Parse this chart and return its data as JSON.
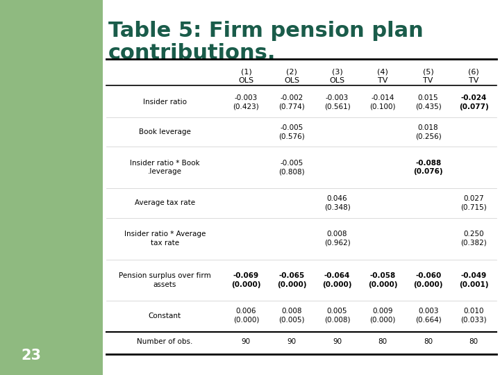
{
  "title_line1": "Table 5: Firm pension plan",
  "title_line2": "contributions.",
  "page_number": "23",
  "col_headers_row1": [
    "(1)",
    "(2)",
    "(3)",
    "(4)",
    "(5)",
    "(6)"
  ],
  "col_headers_row2": [
    "OLS",
    "OLS",
    "OLS",
    "TV",
    "TV",
    "TV"
  ],
  "rows": [
    {
      "label": "Insider ratio",
      "values": [
        "-0.003\n(0.423)",
        "-0.002\n(0.774)",
        "-0.003\n(0.561)",
        "-0.014\n(0.100)",
        "0.015\n(0.435)",
        "-0.024\n(0.077)"
      ],
      "bold": [
        false,
        false,
        false,
        false,
        false,
        true
      ]
    },
    {
      "label": "Book leverage",
      "values": [
        "",
        "-0.005\n(0.576)",
        "",
        "",
        "0.018\n(0.256)",
        ""
      ],
      "bold": [
        false,
        false,
        false,
        false,
        false,
        false
      ]
    },
    {
      "label": "Insider ratio * Book\n.leverage",
      "values": [
        "",
        "-0.005\n(0.808)",
        "",
        "",
        "-0.088\n(0.076)",
        ""
      ],
      "bold": [
        false,
        false,
        false,
        false,
        true,
        false
      ]
    },
    {
      "label": "Average tax rate",
      "values": [
        "",
        "",
        "0.046\n(0.348)",
        "",
        "",
        "0.027\n(0.715)"
      ],
      "bold": [
        false,
        false,
        false,
        false,
        false,
        false
      ]
    },
    {
      "label": "Insider ratio * Average\ntax rate",
      "values": [
        "",
        "",
        "0.008\n(0.962)",
        "",
        "",
        "0.250\n(0.382)"
      ],
      "bold": [
        false,
        false,
        false,
        false,
        false,
        false
      ]
    },
    {
      "label": "Pension surplus over firm\nassets",
      "values": [
        "-0.069\n(0.000)",
        "-0.065\n(0.000)",
        "-0.064\n(0.000)",
        "-0.058\n(0.000)",
        "-0.060\n(0.000)",
        "-0.049\n(0.001)"
      ],
      "bold": [
        true,
        true,
        true,
        true,
        true,
        true
      ]
    },
    {
      "label": "Constant",
      "values": [
        "0.006\n(0.000)",
        "0.008\n(0.005)",
        "0.005\n(0.008)",
        "0.009\n(0.000)",
        "0.003\n(0.664)",
        "0.010\n(0.033)"
      ],
      "bold": [
        false,
        false,
        false,
        false,
        false,
        false
      ]
    }
  ],
  "footer_label": "Number of obs.",
  "footer_values": [
    "90",
    "90",
    "90",
    "80",
    "80",
    "80"
  ],
  "sidebar_color": "#8fba80",
  "background_color": "#ffffff",
  "outer_bg": "#c8d9a8",
  "title_color": "#1a5c4a",
  "page_num_color": "#8fba80",
  "title_fontsize": 22,
  "header_fontsize": 8,
  "cell_fontsize": 7.5,
  "label_fontsize": 7.5
}
